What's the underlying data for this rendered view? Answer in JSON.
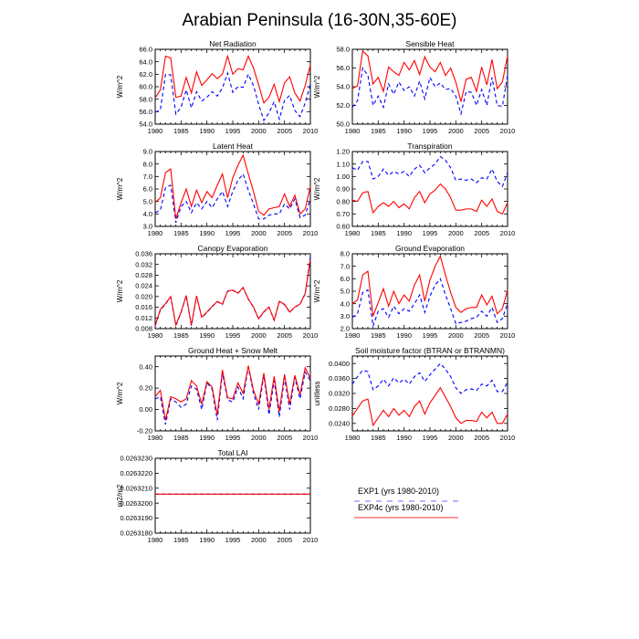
{
  "figure_title": "Arabian Peninsula (16-30N,35-60E)",
  "colors": {
    "exp1": "#0000ff",
    "exp4c": "#ff0000",
    "axis": "#000000"
  },
  "legend": {
    "entries": [
      {
        "label": "EXP1 (yrs 1980-2010)",
        "style": "dashed",
        "color": "#0000ff"
      },
      {
        "label": "EXP4c (yrs 1980-2010)",
        "style": "solid",
        "color": "#ff0000"
      }
    ]
  },
  "chart_data": [
    {
      "type": "line",
      "title": "Net Radiation",
      "ylabel": "W/m^2",
      "xlim": [
        1980,
        2010
      ],
      "ylim": [
        54.0,
        66.0
      ],
      "x_ticks": [
        1980,
        1985,
        1990,
        1995,
        2000,
        2005,
        2010
      ],
      "y_ticks": [
        "54.0",
        "56.0",
        "58.0",
        "60.0",
        "62.0",
        "64.0",
        "66.0"
      ],
      "x": [
        1980,
        1981,
        1982,
        1983,
        1984,
        1985,
        1986,
        1987,
        1988,
        1989,
        1990,
        1991,
        1992,
        1993,
        1994,
        1995,
        1996,
        1997,
        1998,
        1999,
        2000,
        2001,
        2002,
        2003,
        2004,
        2005,
        2006,
        2007,
        2008,
        2009,
        2010
      ],
      "series": [
        {
          "name": "EXP1",
          "values": [
            55.9,
            56.3,
            62.0,
            61.9,
            55.6,
            56.7,
            59.5,
            56.6,
            59.2,
            57.7,
            58.3,
            59.2,
            58.5,
            59.8,
            62.2,
            59.1,
            60.0,
            59.9,
            62.0,
            60.2,
            57.2,
            54.6,
            55.8,
            57.6,
            54.8,
            57.8,
            58.6,
            56.2,
            55.2,
            57.4,
            60.4
          ]
        },
        {
          "name": "EXP4c",
          "values": [
            58.2,
            59.5,
            64.9,
            64.6,
            58.3,
            58.5,
            61.5,
            59.0,
            62.4,
            60.2,
            61.1,
            62.1,
            61.3,
            62.0,
            64.9,
            62.0,
            62.9,
            62.7,
            64.9,
            63.0,
            60.3,
            57.4,
            58.3,
            60.4,
            57.6,
            60.6,
            61.6,
            59.0,
            57.7,
            60.2,
            63.5
          ]
        }
      ]
    },
    {
      "type": "line",
      "title": "Sensible Heat",
      "ylabel": "W/m^2",
      "xlim": [
        1980,
        2010
      ],
      "ylim": [
        50.0,
        58.0
      ],
      "x_ticks": [
        1980,
        1985,
        1990,
        1995,
        2000,
        2005,
        2010
      ],
      "y_ticks": [
        "50.0",
        "52.0",
        "54.0",
        "56.0",
        "58.0"
      ],
      "x": [
        1980,
        1981,
        1982,
        1983,
        1984,
        1985,
        1986,
        1987,
        1988,
        1989,
        1990,
        1991,
        1992,
        1993,
        1994,
        1995,
        1996,
        1997,
        1998,
        1999,
        2000,
        2001,
        2002,
        2003,
        2004,
        2005,
        2006,
        2007,
        2008,
        2009,
        2010
      ],
      "series": [
        {
          "name": "EXP1",
          "values": [
            51.8,
            52.5,
            56.0,
            55.2,
            52.0,
            53.0,
            51.8,
            54.3,
            53.2,
            54.5,
            53.6,
            54.0,
            53.0,
            54.6,
            52.7,
            55.0,
            54.0,
            54.4,
            53.7,
            53.8,
            53.0,
            51.1,
            53.5,
            53.4,
            52.0,
            53.7,
            52.0,
            55.0,
            52.0,
            51.9,
            55.2
          ]
        },
        {
          "name": "EXP4c",
          "values": [
            53.8,
            54.1,
            57.8,
            57.3,
            54.3,
            55.0,
            53.5,
            56.1,
            55.6,
            55.2,
            56.6,
            55.8,
            56.8,
            55.3,
            57.2,
            56.1,
            55.6,
            56.6,
            55.2,
            56.0,
            54.5,
            52.4,
            54.8,
            55.0,
            53.5,
            56.1,
            54.2,
            56.9,
            53.8,
            54.5,
            57.3
          ]
        }
      ]
    },
    {
      "type": "line",
      "title": "Latent Heat",
      "ylabel": "W/m^2",
      "xlim": [
        1980,
        2010
      ],
      "ylim": [
        3.0,
        9.0
      ],
      "x_ticks": [
        1980,
        1985,
        1990,
        1995,
        2000,
        2005,
        2010
      ],
      "y_ticks": [
        "3.0",
        "4.0",
        "5.0",
        "6.0",
        "7.0",
        "8.0",
        "9.0"
      ],
      "x": [
        1980,
        1981,
        1982,
        1983,
        1984,
        1985,
        1986,
        1987,
        1988,
        1989,
        1990,
        1991,
        1992,
        1993,
        1994,
        1995,
        1996,
        1997,
        1998,
        1999,
        2000,
        2001,
        2002,
        2003,
        2004,
        2005,
        2006,
        2007,
        2008,
        2009,
        2010
      ],
      "series": [
        {
          "name": "EXP1",
          "values": [
            4.1,
            4.3,
            6.1,
            6.3,
            3.3,
            4.6,
            5.0,
            4.1,
            4.9,
            4.4,
            5.0,
            4.5,
            5.2,
            5.8,
            4.6,
            5.8,
            6.7,
            7.2,
            5.9,
            4.8,
            3.6,
            3.6,
            3.9,
            4.0,
            4.0,
            4.8,
            4.4,
            5.2,
            3.7,
            3.9,
            5.2
          ]
        },
        {
          "name": "EXP4c",
          "values": [
            4.9,
            5.3,
            7.3,
            7.6,
            3.6,
            4.9,
            6.0,
            4.6,
            5.9,
            4.9,
            5.8,
            5.3,
            6.3,
            7.2,
            5.3,
            6.9,
            7.9,
            8.7,
            7.2,
            5.8,
            4.2,
            3.9,
            4.4,
            4.5,
            4.6,
            5.6,
            4.6,
            5.5,
            4.0,
            4.4,
            6.2
          ]
        }
      ]
    },
    {
      "type": "line",
      "title": "Transpiration",
      "ylabel": "W/m^2",
      "xlim": [
        1980,
        2010
      ],
      "ylim": [
        0.6,
        1.2
      ],
      "x_ticks": [
        1980,
        1985,
        1990,
        1995,
        2000,
        2005,
        2010
      ],
      "y_ticks": [
        "0.60",
        "0.70",
        "0.80",
        "0.90",
        "1.00",
        "1.10",
        "1.20"
      ],
      "x": [
        1980,
        1981,
        1982,
        1983,
        1984,
        1985,
        1986,
        1987,
        1988,
        1989,
        1990,
        1991,
        1992,
        1993,
        1994,
        1995,
        1996,
        1997,
        1998,
        1999,
        2000,
        2001,
        2002,
        2003,
        2004,
        2005,
        2006,
        2007,
        2008,
        2009,
        2010
      ],
      "series": [
        {
          "name": "EXP1",
          "values": [
            1.07,
            1.05,
            1.12,
            1.12,
            0.98,
            1.0,
            1.06,
            1.01,
            1.04,
            1.02,
            1.04,
            1.0,
            1.06,
            1.09,
            1.03,
            1.07,
            1.1,
            1.16,
            1.13,
            1.07,
            0.97,
            0.98,
            0.97,
            0.98,
            0.95,
            0.99,
            0.98,
            1.06,
            0.96,
            0.92,
            1.03
          ]
        },
        {
          "name": "EXP4c",
          "values": [
            0.81,
            0.8,
            0.87,
            0.88,
            0.71,
            0.76,
            0.79,
            0.76,
            0.8,
            0.75,
            0.78,
            0.74,
            0.83,
            0.88,
            0.79,
            0.86,
            0.89,
            0.94,
            0.9,
            0.83,
            0.73,
            0.73,
            0.74,
            0.74,
            0.72,
            0.81,
            0.76,
            0.82,
            0.72,
            0.7,
            0.79
          ]
        }
      ]
    },
    {
      "type": "line",
      "title": "Canopy Evaporation",
      "ylabel": "W/m^2",
      "xlim": [
        1980,
        2010
      ],
      "ylim": [
        0.008,
        0.036
      ],
      "x_ticks": [
        1980,
        1985,
        1990,
        1995,
        2000,
        2005,
        2010
      ],
      "y_ticks": [
        "0.008",
        "0.012",
        "0.016",
        "0.020",
        "0.024",
        "0.028",
        "0.032",
        "0.036"
      ],
      "x": [
        1980,
        1981,
        1982,
        1983,
        1984,
        1985,
        1986,
        1987,
        1988,
        1989,
        1990,
        1991,
        1992,
        1993,
        1994,
        1995,
        1996,
        1997,
        1998,
        1999,
        2000,
        2001,
        2002,
        2003,
        2004,
        2005,
        2006,
        2007,
        2008,
        2009,
        2010
      ],
      "series": [
        {
          "name": "EXP1",
          "values": [
            0.009,
            0.015,
            0.0172,
            0.0199,
            0.0091,
            0.014,
            0.0203,
            0.0091,
            0.0201,
            0.0122,
            0.014,
            0.0162,
            0.0181,
            0.017,
            0.022,
            0.0223,
            0.0212,
            0.0233,
            0.019,
            0.016,
            0.0116,
            0.0142,
            0.016,
            0.0111,
            0.0181,
            0.017,
            0.0141,
            0.016,
            0.0171,
            0.021,
            0.035
          ]
        },
        {
          "name": "EXP4c",
          "values": [
            0.0092,
            0.0152,
            0.0174,
            0.02,
            0.0093,
            0.0142,
            0.0204,
            0.0093,
            0.0202,
            0.0123,
            0.0142,
            0.0163,
            0.0182,
            0.0172,
            0.0221,
            0.0224,
            0.0213,
            0.0234,
            0.0191,
            0.0161,
            0.0117,
            0.0143,
            0.0161,
            0.0112,
            0.0182,
            0.0171,
            0.0142,
            0.0161,
            0.0172,
            0.0212,
            0.034
          ]
        }
      ]
    },
    {
      "type": "line",
      "title": "Ground Evaporation",
      "ylabel": "W/m^2",
      "xlim": [
        1980,
        2010
      ],
      "ylim": [
        2.0,
        8.0
      ],
      "x_ticks": [
        1980,
        1985,
        1990,
        1995,
        2000,
        2005,
        2010
      ],
      "y_ticks": [
        "2.0",
        "3.0",
        "4.0",
        "5.0",
        "6.0",
        "7.0",
        "8.0"
      ],
      "x": [
        1980,
        1981,
        1982,
        1983,
        1984,
        1985,
        1986,
        1987,
        1988,
        1989,
        1990,
        1991,
        1992,
        1993,
        1994,
        1995,
        1996,
        1997,
        1998,
        1999,
        2000,
        2001,
        2002,
        2003,
        2004,
        2005,
        2006,
        2007,
        2008,
        2009,
        2010
      ],
      "series": [
        {
          "name": "EXP1",
          "values": [
            2.9,
            3.2,
            4.9,
            5.1,
            2.2,
            3.4,
            3.6,
            2.9,
            3.8,
            3.2,
            3.6,
            3.4,
            4.0,
            4.7,
            3.3,
            4.6,
            5.5,
            6.0,
            4.7,
            3.6,
            2.4,
            2.5,
            2.6,
            2.8,
            2.9,
            3.4,
            3.0,
            3.7,
            2.5,
            2.8,
            4.0
          ]
        },
        {
          "name": "EXP4c",
          "values": [
            4.0,
            4.3,
            6.3,
            6.6,
            3.0,
            4.1,
            5.2,
            3.8,
            5.0,
            4.0,
            4.7,
            4.2,
            5.5,
            6.3,
            4.2,
            5.9,
            7.0,
            7.8,
            6.3,
            4.9,
            3.7,
            3.3,
            3.6,
            3.7,
            3.7,
            4.7,
            3.9,
            4.6,
            3.2,
            3.6,
            5.1
          ]
        }
      ]
    },
    {
      "type": "line",
      "title": "Ground Heat + Snow Melt",
      "ylabel": "W/m^2",
      "xlim": [
        1980,
        2010
      ],
      "ylim": [
        -0.2,
        0.5
      ],
      "x_ticks": [
        1980,
        1985,
        1990,
        1995,
        2000,
        2005,
        2010
      ],
      "y_ticks": [
        "-0.20",
        "0.00",
        "0.20",
        "0.40"
      ],
      "y_tick_values": [
        -0.2,
        0.0,
        0.2,
        0.4
      ],
      "x": [
        1980,
        1981,
        1982,
        1983,
        1984,
        1985,
        1986,
        1987,
        1988,
        1989,
        1990,
        1991,
        1992,
        1993,
        1994,
        1995,
        1996,
        1997,
        1998,
        1999,
        2000,
        2001,
        2002,
        2003,
        2004,
        2005,
        2006,
        2007,
        2008,
        2009,
        2010
      ],
      "series": [
        {
          "name": "EXP1",
          "values": [
            0.1,
            0.12,
            -0.14,
            0.1,
            0.07,
            0.02,
            0.05,
            0.22,
            0.19,
            0.0,
            0.25,
            0.19,
            -0.1,
            0.34,
            0.09,
            0.07,
            0.21,
            0.1,
            0.4,
            0.15,
            0.0,
            0.32,
            -0.05,
            0.27,
            -0.07,
            0.3,
            0.0,
            0.3,
            0.1,
            0.35,
            0.27
          ]
        },
        {
          "name": "EXP4c",
          "values": [
            0.12,
            0.18,
            -0.1,
            0.12,
            0.1,
            0.07,
            0.1,
            0.27,
            0.22,
            0.05,
            0.26,
            0.21,
            -0.05,
            0.37,
            0.11,
            0.1,
            0.25,
            0.15,
            0.41,
            0.18,
            0.05,
            0.34,
            0.0,
            0.31,
            -0.02,
            0.33,
            0.05,
            0.32,
            0.14,
            0.39,
            0.29
          ]
        }
      ]
    },
    {
      "type": "line",
      "title": "Soil moisture factor (BTRAN or BTRANMN)",
      "ylabel": "unitless",
      "xlim": [
        1980,
        2010
      ],
      "ylim": [
        0.022,
        0.042
      ],
      "x_ticks": [
        1980,
        1985,
        1990,
        1995,
        2000,
        2005,
        2010
      ],
      "y_ticks": [
        "0.0240",
        "0.0280",
        "0.0320",
        "0.0360",
        "0.0400"
      ],
      "y_tick_values": [
        0.024,
        0.028,
        0.032,
        0.036,
        0.04
      ],
      "x": [
        1980,
        1981,
        1982,
        1983,
        1984,
        1985,
        1986,
        1987,
        1988,
        1989,
        1990,
        1991,
        1992,
        1993,
        1994,
        1995,
        1996,
        1997,
        1998,
        1999,
        2000,
        2001,
        2002,
        2003,
        2004,
        2005,
        2006,
        2007,
        2008,
        2009,
        2010
      ],
      "series": [
        {
          "name": "EXP1",
          "values": [
            0.0345,
            0.0365,
            0.0382,
            0.0378,
            0.033,
            0.034,
            0.0358,
            0.034,
            0.0362,
            0.0348,
            0.0358,
            0.0345,
            0.0365,
            0.0375,
            0.0352,
            0.037,
            0.0385,
            0.04,
            0.0385,
            0.0365,
            0.0335,
            0.032,
            0.033,
            0.0332,
            0.0328,
            0.0345,
            0.034,
            0.0355,
            0.0325,
            0.0325,
            0.035
          ]
        },
        {
          "name": "EXP4c",
          "values": [
            0.026,
            0.028,
            0.03,
            0.0305,
            0.0235,
            0.0255,
            0.0275,
            0.0258,
            0.028,
            0.0262,
            0.0275,
            0.0258,
            0.0285,
            0.03,
            0.0265,
            0.0295,
            0.0315,
            0.0335,
            0.031,
            0.0285,
            0.0255,
            0.024,
            0.0248,
            0.0248,
            0.0245,
            0.027,
            0.0255,
            0.027,
            0.024,
            0.024,
            0.0265
          ]
        }
      ]
    },
    {
      "type": "line",
      "title": "Total LAI",
      "ylabel": "m2/m2",
      "xlim": [
        1980,
        2010
      ],
      "ylim": [
        0.026318,
        0.026323
      ],
      "x_ticks": [
        1980,
        1985,
        1990,
        1995,
        2000,
        2005,
        2010
      ],
      "y_ticks": [
        "0.0263180",
        "0.0263190",
        "0.0263200",
        "0.0263210",
        "0.0263220",
        "0.0263230"
      ],
      "x": [
        1980,
        2010
      ],
      "series": [
        {
          "name": "EXP1",
          "values": [
            0.0263206,
            0.0263206
          ]
        },
        {
          "name": "EXP4c",
          "values": [
            0.0263206,
            0.0263206
          ]
        }
      ]
    }
  ]
}
